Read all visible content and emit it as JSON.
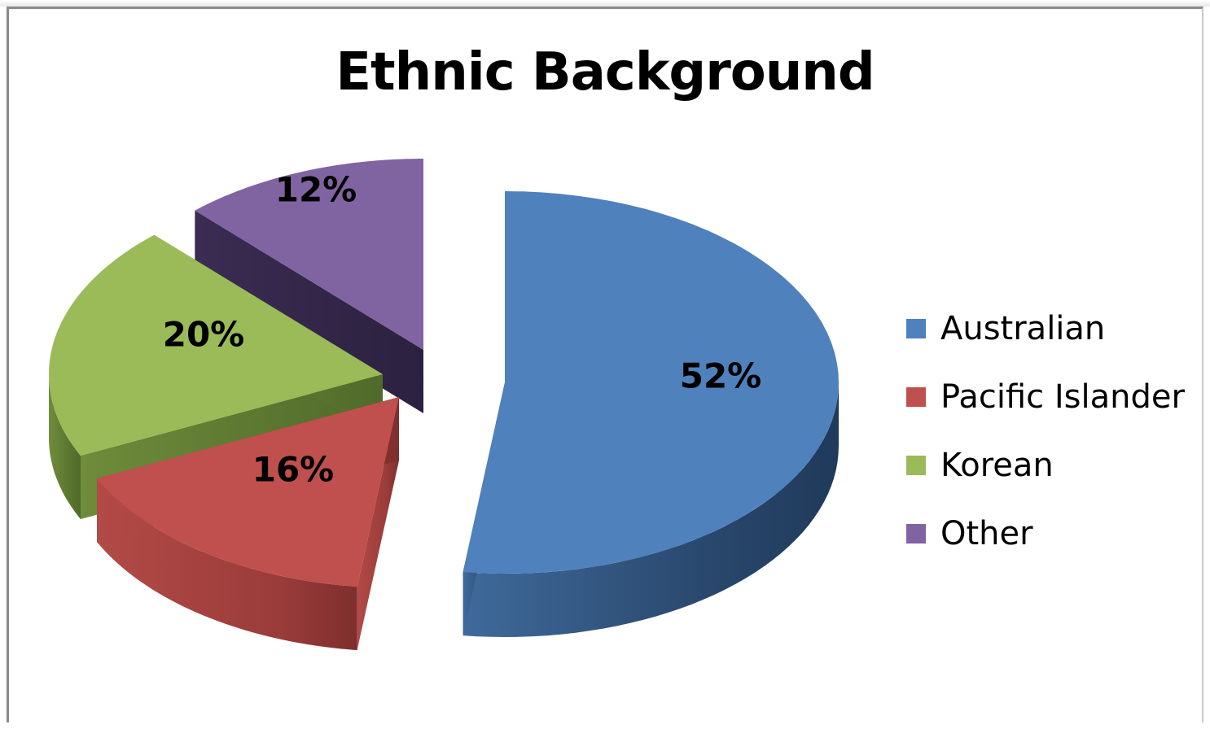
{
  "chart_data": {
    "type": "pie",
    "title": "Ethnic Background",
    "slices": [
      {
        "name": "Australian",
        "value": 52,
        "label": "52%",
        "color": "#4f81bd"
      },
      {
        "name": "Pacific Islander",
        "value": 16,
        "label": "16%",
        "color": "#c0504d"
      },
      {
        "name": "Korean",
        "value": 20,
        "label": "20%",
        "color": "#9bbb59"
      },
      {
        "name": "Other",
        "value": 12,
        "label": "12%",
        "color": "#8064a2"
      }
    ],
    "legend_position": "right",
    "style": "3d-exploded"
  }
}
